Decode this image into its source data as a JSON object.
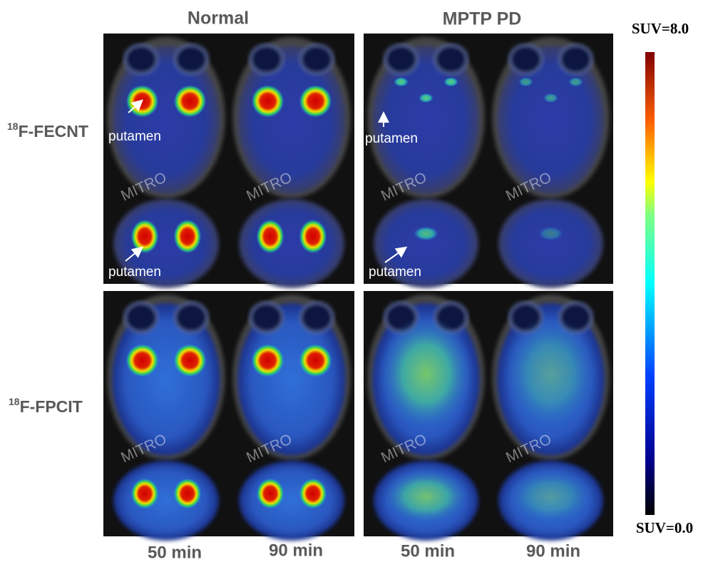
{
  "columns": [
    "Normal",
    "MPTP PD"
  ],
  "rows": [
    {
      "sup": "18",
      "label": "F-FECNT"
    },
    {
      "sup": "18",
      "label": "F-FPCIT"
    }
  ],
  "times": [
    "50 min",
    "90 min",
    "50 min",
    "90 min"
  ],
  "annotations": [
    "putamen",
    "putamen",
    "putamen",
    "putamen"
  ],
  "watermark": "MITRO",
  "colorbar": {
    "max_label": "SUV=8.0",
    "min_label": "SUV=0.0"
  }
}
